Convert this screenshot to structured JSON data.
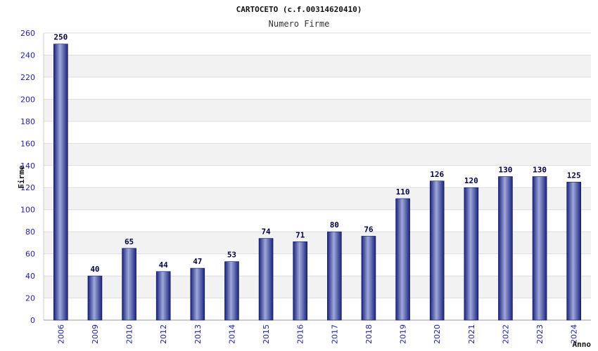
{
  "chart_data": {
    "type": "bar",
    "title": "CARTOCETO (c.f.00314620410)",
    "subtitle": "Numero Firme",
    "xlabel": "Anno",
    "ylabel": "Firme",
    "categories": [
      "2006",
      "2009",
      "2010",
      "2012",
      "2013",
      "2014",
      "2015",
      "2016",
      "2017",
      "2018",
      "2019",
      "2020",
      "2021",
      "2022",
      "2023",
      "2024"
    ],
    "values": [
      250,
      40,
      65,
      44,
      47,
      53,
      74,
      71,
      80,
      76,
      110,
      126,
      120,
      130,
      130,
      125
    ],
    "ylim": [
      0,
      260
    ],
    "yticks": [
      0,
      20,
      40,
      60,
      80,
      100,
      120,
      140,
      160,
      180,
      200,
      220,
      240,
      260
    ],
    "grid": true,
    "bar_color": "#1a237e",
    "bar_highlight": "#9fa8da",
    "band_color": "#f2f2f2",
    "tick_label_color": "#2222aa"
  }
}
